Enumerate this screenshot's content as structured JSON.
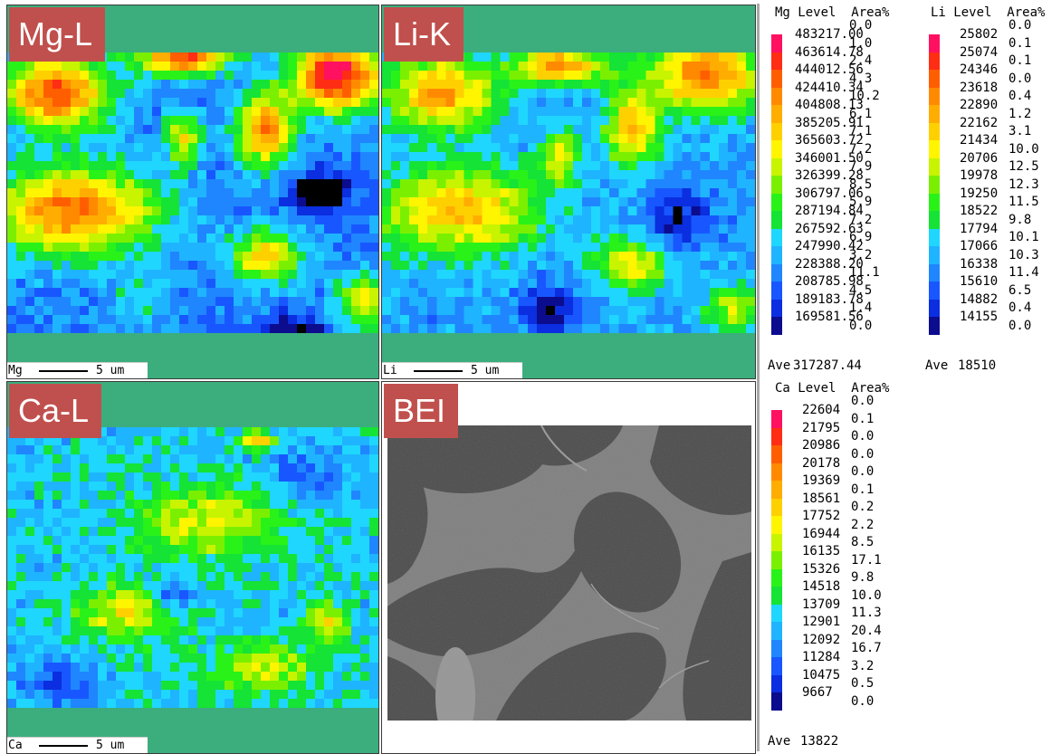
{
  "panels": {
    "mg": {
      "label": "Mg-L",
      "scale_element": "Mg",
      "scale_length": "5 um"
    },
    "li": {
      "label": "Li-K",
      "scale_element": "Li",
      "scale_length": "5 um"
    },
    "ca": {
      "label": "Ca-L",
      "scale_element": "Ca",
      "scale_length": "5 um"
    },
    "bei": {
      "label": "BEI"
    }
  },
  "colors": {
    "background_green": "#3cae7d",
    "tag_red": "#c0504d",
    "scale": [
      "#000000",
      "#0c0c8e",
      "#0a2ee0",
      "#1857ff",
      "#1f86ff",
      "#1fb4ff",
      "#1fd6ff",
      "#15e335",
      "#29f219",
      "#7af000",
      "#c8f400",
      "#fff500",
      "#ffd000",
      "#ffad00",
      "#ff8a00",
      "#ff5e00",
      "#ff2d14",
      "#ff1060"
    ]
  },
  "legends": {
    "mg": {
      "header": "Mg Level  Area%",
      "levels": [
        "483217.00",
        "463614.78",
        "444012.56",
        "424410.34",
        "404808.13",
        "385205.91",
        "365603.72",
        "346001.50",
        "326399.28",
        "306797.06",
        "287194.84",
        "267592.63",
        "247990.42",
        "228388.20",
        "208785.98",
        "189183.78",
        "169581.56"
      ],
      "areas": [
        "0.0",
        "1.0",
        "2.4",
        "4.3",
        "10.2",
        "6.1",
        "7.1",
        "7.2",
        "7.9",
        "8.5",
        "5.9",
        "7.2",
        "6.9",
        "3.2",
        "11.1",
        "4.5",
        "1.4",
        "0.0"
      ],
      "ave_label": "Ave",
      "ave": "317287.44"
    },
    "li": {
      "header": "Li Level  Area%",
      "levels": [
        "25802",
        "25074",
        "24346",
        "23618",
        "22890",
        "22162",
        "21434",
        "20706",
        "19978",
        "19250",
        "18522",
        "17794",
        "17066",
        "16338",
        "15610",
        "14882",
        "14155"
      ],
      "areas": [
        "0.0",
        "0.1",
        "0.1",
        "0.0",
        "0.4",
        "1.2",
        "3.1",
        "10.0",
        "12.5",
        "12.3",
        "11.5",
        "9.8",
        "10.1",
        "10.3",
        "11.4",
        "6.5",
        "0.4",
        "0.0"
      ],
      "ave_label": "Ave",
      "ave": "18510"
    },
    "ca": {
      "header": "Ca Level  Area%",
      "levels": [
        "22604",
        "21795",
        "20986",
        "20178",
        "19369",
        "18561",
        "17752",
        "16944",
        "16135",
        "15326",
        "14518",
        "13709",
        "12901",
        "12092",
        "11284",
        "10475",
        "9667"
      ],
      "areas": [
        "0.0",
        "0.1",
        "0.0",
        "0.0",
        "0.0",
        "0.1",
        "0.2",
        "2.2",
        "8.5",
        "17.1",
        "9.8",
        "10.0",
        "11.3",
        "20.4",
        "16.7",
        "3.2",
        "0.5",
        "0.0"
      ],
      "ave_label": "Ave",
      "ave": "13822"
    }
  }
}
